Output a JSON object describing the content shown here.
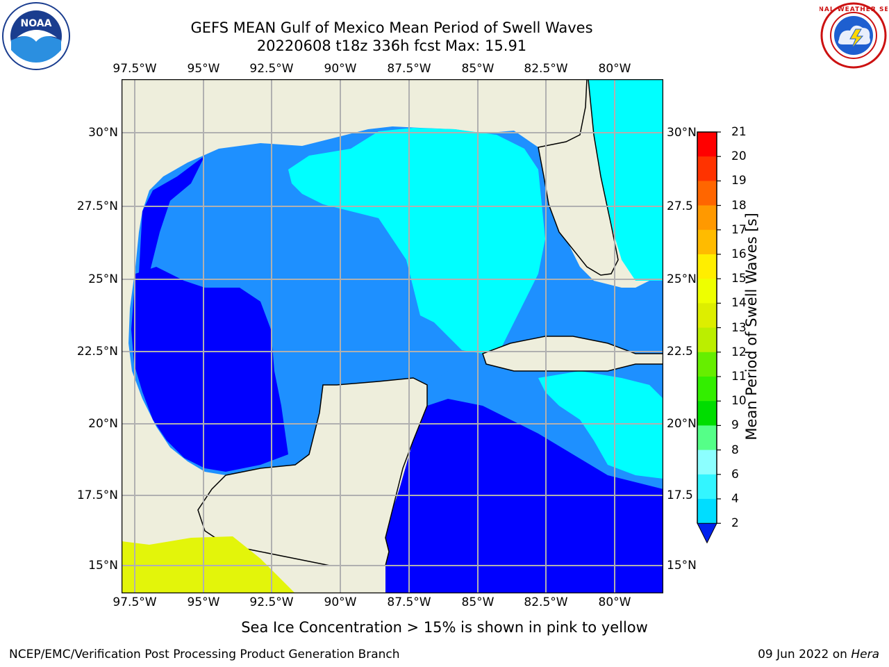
{
  "header": {
    "title_line1": "GEFS MEAN Gulf of Mexico Mean Period of Swell Waves",
    "title_line2": "20220608 t18z 336h fcst   Max: 15.91"
  },
  "logos": {
    "noaa_text": "NOAA",
    "noaa_ring": "NATIONAL OCEANIC AND ATMOSPHERIC ADMINISTRATION · U.S. DEPARTMENT OF COMMERCE",
    "nws_ring": "NATIONAL WEATHER SERVICE"
  },
  "map": {
    "lon_labels": [
      "97.5°W",
      "95°W",
      "92.5°W",
      "90°W",
      "87.5°W",
      "85°W",
      "82.5°W",
      "80°W"
    ],
    "lat_labels_left": [
      "30°N",
      "27.5°N",
      "25°N",
      "22.5°N",
      "20°N",
      "17.5°N",
      "15°N"
    ],
    "lat_labels_right": [
      "30°N",
      "27.5",
      "25°N",
      "22.5",
      "20°N",
      "17.5",
      "15°N"
    ],
    "colors": {
      "land": "#eeeedc",
      "ocean_fill": "#1e90ff",
      "swell_2_4": "#0000ff",
      "swell_4_6": "#00ffff",
      "swell_6_8": "#57ffff",
      "grid": "#b0b0b0"
    }
  },
  "colorbar": {
    "label": "Mean Period of Swell Waves [s]",
    "ticks": [
      "2",
      "4",
      "6",
      "8",
      "9",
      "10",
      "11",
      "12",
      "13",
      "14",
      "15",
      "16",
      "17",
      "18",
      "19",
      "20",
      "21"
    ],
    "colors": [
      "#0055ff",
      "#00ddff",
      "#33f5ff",
      "#8cffff",
      "#55ff88",
      "#00dd00",
      "#33ee00",
      "#66ee00",
      "#bbee00",
      "#ddee00",
      "#eeff00",
      "#ffee00",
      "#ffbb00",
      "#ff9900",
      "#ff6600",
      "#ff3300",
      "#ff0000"
    ]
  },
  "sea_ice_note": "Sea Ice Concentration > 15% is shown in pink to yellow",
  "footer": {
    "left": "NCEP/EMC/Verification Post Processing Product Generation Branch",
    "date": "09 Jun 2022 on",
    "machine": "Hera"
  }
}
